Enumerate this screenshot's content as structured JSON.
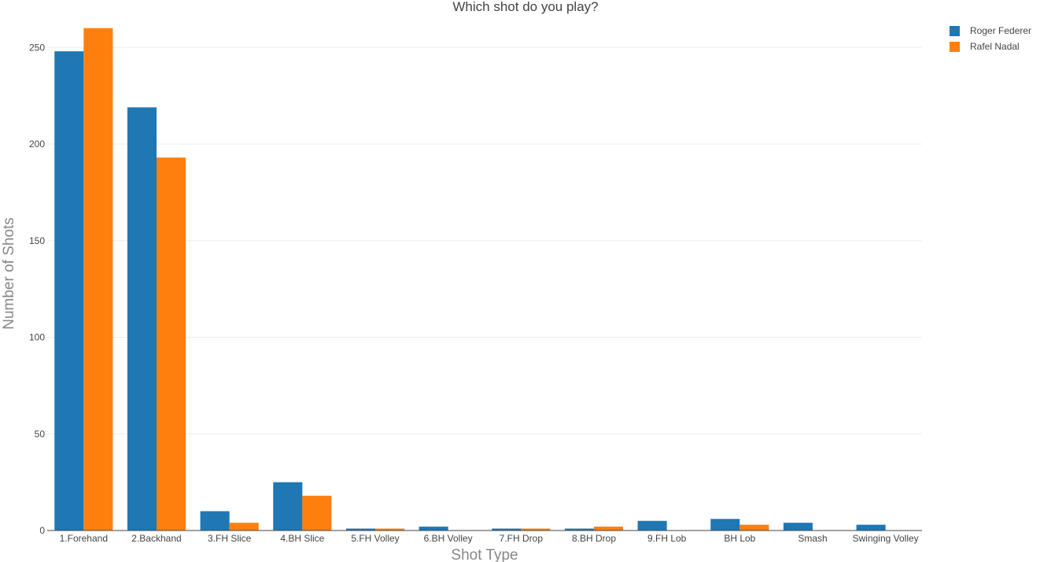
{
  "chart_data": {
    "type": "bar",
    "title": "Which shot do you play?",
    "xlabel": "Shot Type",
    "ylabel": "Number of Shots",
    "categories": [
      "1.Forehand",
      "2.Backhand",
      "3.FH Slice",
      "4.BH Slice",
      "5.FH Volley",
      "6.BH Volley",
      "7.FH Drop",
      "8.BH Drop",
      "9.FH Lob",
      "BH Lob",
      "Smash",
      "Swinging Volley"
    ],
    "series": [
      {
        "name": "Roger Federer",
        "color": "#1f77b4",
        "values": [
          248,
          219,
          10,
          25,
          1,
          2,
          1,
          1,
          5,
          6,
          4,
          3
        ]
      },
      {
        "name": "Rafel Nadal",
        "color": "#ff7f0e",
        "values": [
          260,
          193,
          4,
          18,
          1,
          0,
          1,
          2,
          0,
          3,
          0,
          0
        ]
      }
    ],
    "ylim": [
      0,
      266
    ],
    "yticks": [
      0,
      50,
      100,
      150,
      200,
      250
    ],
    "grid": true,
    "legend_position": "top-right"
  }
}
